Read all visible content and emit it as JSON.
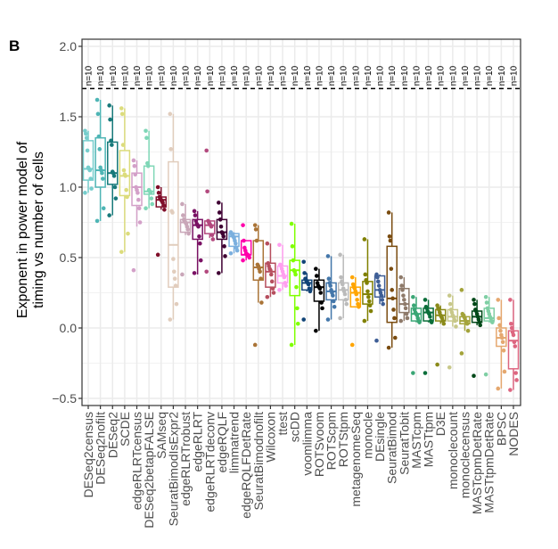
{
  "panel_label": "B",
  "chart_data": {
    "type": "boxplot",
    "title": "",
    "xlabel": "",
    "ylabel": "Exponent in power model of timing vs number of cells",
    "ylabel_lines": [
      "Exponent in power model of",
      "timing vs number of cells"
    ],
    "ylim": [
      -0.55,
      2.0
    ],
    "yticks": [
      -0.5,
      0.0,
      0.5,
      1.0,
      1.5,
      2.0
    ],
    "ytick_labels": [
      "−0.5",
      "0.0",
      "0.5",
      "1.0",
      "1.5",
      "2.0"
    ],
    "grid": true,
    "n_label_line": 1.7,
    "categories": [
      "DESeq2census",
      "DESeq2nofilt",
      "DESeq2",
      "SCDE",
      "edgeRLRTcensus",
      "DESeq2betapFALSE",
      "SAMseq",
      "SeuratBimodIsExpr2",
      "edgeRLRTrobust",
      "edgeRLRT",
      "edgeRLRTdeconv",
      "edgeRQLF",
      "limmatrend",
      "edgeRQLFDetRate",
      "SeuratBimodnofilt",
      "Wilcoxon",
      "ttest",
      "scDD",
      "voomlimma",
      "ROTSvoom",
      "ROTScpm",
      "ROTStpm",
      "metagenomeSeq",
      "monocle",
      "DEsingle",
      "SeuratBimod",
      "SeuratTobit",
      "MASTcpm",
      "MASTtpm",
      "D3E",
      "monoclecount",
      "monoclecensus",
      "MASTcpmDetRate",
      "MASTtpmDetRate",
      "BPSC",
      "NODES"
    ],
    "n_labels": [
      "n=10",
      "n=10",
      "n=10",
      "n=10",
      "n=10",
      "n=10",
      "n=10",
      "n=10",
      "n=10",
      "n=10",
      "n=10",
      "n=10",
      "n=10",
      "n=10",
      "n=10",
      "n=10",
      "n=10",
      "n=10",
      "n=10",
      "n=10",
      "n=10",
      "n=10",
      "n=10",
      "n=10",
      "n=10",
      "n=10",
      "n=10",
      "n=10",
      "n=10",
      "n=10",
      "n=10",
      "n=10",
      "n=10",
      "n=10",
      "n=10",
      "n=10"
    ],
    "colors": [
      "#76CDCC",
      "#4EB5B5",
      "#17797A",
      "#DCDC7C",
      "#D3A0C8",
      "#7FD7B7",
      "#800F2A",
      "#E1CDBD",
      "#C9A6B8",
      "#7A1264",
      "#B3497E",
      "#3F0033",
      "#7BAFDE",
      "#FF00AA",
      "#AA7437",
      "#B64E5E",
      "#FFA0F0",
      "#80FF00",
      "#114477",
      "#000000",
      "#4477AA",
      "#BBBBBB",
      "#FFA500",
      "#808000",
      "#3E5E96",
      "#7A4C10",
      "#8E7A6A",
      "#3AA675",
      "#0B6E3A",
      "#8A8A1A",
      "#C8C88A",
      "#A3A33A",
      "#004818",
      "#7FCFA4",
      "#E5A86F",
      "#DD6680"
    ],
    "series": [
      {
        "name": "DESeq2census",
        "whisker_low": 0.96,
        "q1": 1.05,
        "median": 1.13,
        "q3": 1.33,
        "whisker_high": 1.4,
        "points": [
          1.4,
          1.38,
          1.35,
          1.26,
          1.14,
          1.13,
          1.12,
          1.06,
          0.99,
          0.96
        ]
      },
      {
        "name": "DESeq2nofilt",
        "whisker_low": 0.76,
        "q1": 1.0,
        "median": 1.12,
        "q3": 1.35,
        "whisker_high": 1.62,
        "points": [
          1.62,
          1.52,
          1.36,
          1.27,
          1.14,
          1.12,
          1.1,
          1.06,
          0.85,
          0.76
        ]
      },
      {
        "name": "DESeq2",
        "whisker_low": 0.8,
        "q1": 1.02,
        "median": 1.1,
        "q3": 1.32,
        "whisker_high": 1.58,
        "points": [
          1.58,
          1.48,
          1.33,
          1.3,
          1.11,
          1.1,
          1.08,
          1.0,
          0.92,
          0.8
        ]
      },
      {
        "name": "SCDE",
        "whisker_low": 0.54,
        "q1": 0.94,
        "median": 1.08,
        "q3": 1.26,
        "whisker_high": 1.56,
        "points": [
          1.56,
          1.52,
          1.3,
          1.12,
          1.09,
          1.08,
          0.98,
          0.93,
          0.67,
          0.54
        ]
      },
      {
        "name": "edgeRLRTcensus",
        "whisker_low": 0.72,
        "q1": 0.87,
        "median": 1.0,
        "q3": 1.1,
        "whisker_high": 1.19,
        "points": [
          1.19,
          1.15,
          1.09,
          1.0,
          0.98,
          0.96,
          0.91,
          0.85,
          0.75,
          0.41
        ]
      },
      {
        "name": "DESeq2betapFALSE",
        "whisker_low": 0.85,
        "q1": 0.95,
        "median": 0.97,
        "q3": 1.15,
        "whisker_high": 1.4,
        "points": [
          1.4,
          1.35,
          1.17,
          1.15,
          0.98,
          0.97,
          0.96,
          0.92,
          0.88,
          0.85
        ]
      },
      {
        "name": "SAMseq",
        "whisker_low": 0.84,
        "q1": 0.86,
        "median": 0.91,
        "q3": 0.93,
        "whisker_high": 1.0,
        "points": [
          1.0,
          0.96,
          0.93,
          0.92,
          0.91,
          0.9,
          0.89,
          0.87,
          0.84,
          0.52
        ]
      },
      {
        "name": "SeuratBimodIsExpr2",
        "whisker_low": 0.06,
        "q1": 0.29,
        "median": 0.59,
        "q3": 1.18,
        "whisker_high": 1.52,
        "points": [
          1.52,
          1.27,
          0.83,
          0.82,
          0.49,
          0.4,
          0.35,
          0.3,
          0.17,
          0.06
        ]
      },
      {
        "name": "edgeRLRTrobust",
        "whisker_low": 0.66,
        "q1": 0.68,
        "median": 0.75,
        "q3": 0.77,
        "whisker_high": 0.88,
        "points": [
          0.88,
          0.8,
          0.77,
          0.76,
          0.75,
          0.74,
          0.72,
          0.7,
          0.67,
          0.38
        ]
      },
      {
        "name": "edgeRLRT",
        "whisker_low": 0.38,
        "q1": 0.63,
        "median": 0.73,
        "q3": 0.77,
        "whisker_high": 0.83,
        "points": [
          0.83,
          0.8,
          0.76,
          0.74,
          0.73,
          0.72,
          0.65,
          0.6,
          0.48,
          0.39
        ]
      },
      {
        "name": "edgeRLRTdeconv",
        "whisker_low": 0.64,
        "q1": 0.67,
        "median": 0.73,
        "q3": 0.76,
        "whisker_high": 0.76,
        "points": [
          1.26,
          0.97,
          0.76,
          0.75,
          0.74,
          0.73,
          0.72,
          0.66,
          0.63,
          0.4
        ]
      },
      {
        "name": "edgeRQLF",
        "whisker_low": 0.39,
        "q1": 0.63,
        "median": 0.68,
        "q3": 0.77,
        "whisker_high": 0.89,
        "points": [
          0.89,
          0.82,
          0.77,
          0.72,
          0.68,
          0.67,
          0.65,
          0.58,
          0.51,
          0.39
        ]
      },
      {
        "name": "limmatrend",
        "whisker_low": 0.53,
        "q1": 0.58,
        "median": 0.65,
        "q3": 0.67,
        "whisker_high": 0.68,
        "points": [
          0.68,
          0.67,
          0.66,
          0.65,
          0.64,
          0.62,
          0.6,
          0.57,
          0.55,
          0.53
        ]
      },
      {
        "name": "edgeRQLFDetRate",
        "whisker_low": 0.48,
        "q1": 0.52,
        "median": 0.52,
        "q3": 0.62,
        "whisker_high": 0.62,
        "points": [
          0.73,
          0.62,
          0.57,
          0.55,
          0.53,
          0.52,
          0.52,
          0.51,
          0.5,
          0.48
        ]
      },
      {
        "name": "SeuratBimodnofilt",
        "whisker_low": 0.18,
        "q1": 0.34,
        "median": 0.43,
        "q3": 0.62,
        "whisker_high": 0.73,
        "points": [
          0.73,
          0.7,
          0.62,
          0.45,
          0.44,
          0.42,
          0.4,
          0.35,
          0.18,
          -0.12
        ]
      },
      {
        "name": "Wilcoxon",
        "whisker_low": 0.22,
        "q1": 0.29,
        "median": 0.4,
        "q3": 0.46,
        "whisker_high": 0.6,
        "points": [
          0.6,
          0.46,
          0.44,
          0.42,
          0.41,
          0.38,
          0.33,
          0.28,
          0.25,
          0.22
        ]
      },
      {
        "name": "ttest",
        "whisker_low": 0.27,
        "q1": 0.32,
        "median": 0.37,
        "q3": 0.44,
        "whisker_high": 0.59,
        "points": [
          0.59,
          0.45,
          0.44,
          0.42,
          0.4,
          0.38,
          0.36,
          0.32,
          0.3,
          0.27
        ]
      },
      {
        "name": "scDD",
        "whisker_low": -0.12,
        "q1": 0.23,
        "median": 0.41,
        "q3": 0.48,
        "whisker_high": 0.74,
        "points": [
          0.74,
          0.58,
          0.48,
          0.41,
          0.4,
          0.38,
          0.29,
          0.14,
          0.03,
          -0.12
        ]
      },
      {
        "name": "voomlimma",
        "whisker_low": 0.26,
        "q1": 0.27,
        "median": 0.32,
        "q3": 0.34,
        "whisker_high": 0.39,
        "points": [
          0.47,
          0.39,
          0.35,
          0.34,
          0.33,
          0.32,
          0.31,
          0.28,
          0.26,
          0.06
        ]
      },
      {
        "name": "ROTSvoom",
        "whisker_low": -0.02,
        "q1": 0.19,
        "median": 0.29,
        "q3": 0.34,
        "whisker_high": 0.42,
        "points": [
          0.42,
          0.37,
          0.32,
          0.3,
          0.29,
          0.28,
          0.25,
          0.18,
          0.14,
          -0.02
        ]
      },
      {
        "name": "ROTScpm",
        "whisker_low": 0.06,
        "q1": 0.2,
        "median": 0.26,
        "q3": 0.32,
        "whisker_high": 0.51,
        "points": [
          0.51,
          0.35,
          0.32,
          0.3,
          0.27,
          0.25,
          0.23,
          0.19,
          0.15,
          0.06
        ]
      },
      {
        "name": "ROTStpm",
        "whisker_low": 0.07,
        "q1": 0.2,
        "median": 0.27,
        "q3": 0.32,
        "whisker_high": 0.52,
        "points": [
          0.52,
          0.36,
          0.33,
          0.31,
          0.28,
          0.26,
          0.24,
          0.2,
          0.17,
          0.07
        ]
      },
      {
        "name": "metagenomeSeq",
        "whisker_low": 0.15,
        "q1": 0.15,
        "median": 0.25,
        "q3": 0.29,
        "whisker_high": 0.36,
        "points": [
          0.36,
          0.31,
          0.29,
          0.28,
          0.26,
          0.24,
          0.2,
          0.17,
          0.15,
          -0.12
        ]
      },
      {
        "name": "monocle",
        "whisker_low": 0.05,
        "q1": 0.17,
        "median": 0.24,
        "q3": 0.33,
        "whisker_high": 0.63,
        "points": [
          0.63,
          0.38,
          0.34,
          0.32,
          0.26,
          0.22,
          0.19,
          0.16,
          0.12,
          0.05
        ]
      },
      {
        "name": "DEsingle",
        "whisker_low": 0.17,
        "q1": 0.22,
        "median": 0.27,
        "q3": 0.37,
        "whisker_high": 0.38,
        "points": [
          0.38,
          0.36,
          0.33,
          0.3,
          0.27,
          0.25,
          0.23,
          0.2,
          0.17,
          -0.09
        ]
      },
      {
        "name": "SeuratBimod",
        "whisker_low": -0.14,
        "q1": 0.04,
        "median": 0.21,
        "q3": 0.58,
        "whisker_high": 0.82,
        "points": [
          0.82,
          0.65,
          0.62,
          0.42,
          0.27,
          0.21,
          0.13,
          0.07,
          -0.07,
          -0.14
        ]
      },
      {
        "name": "SeuratTobit",
        "whisker_low": 0.05,
        "q1": 0.11,
        "median": 0.17,
        "q3": 0.28,
        "whisker_high": 0.36,
        "points": [
          0.36,
          0.3,
          0.27,
          0.23,
          0.2,
          0.17,
          0.14,
          0.1,
          0.07,
          0.05
        ]
      },
      {
        "name": "MASTcpm",
        "whisker_low": 0.04,
        "q1": 0.05,
        "median": 0.1,
        "q3": 0.14,
        "whisker_high": 0.22,
        "points": [
          0.22,
          0.16,
          0.13,
          0.11,
          0.1,
          0.09,
          0.07,
          0.05,
          0.04,
          -0.32
        ]
      },
      {
        "name": "MASTtpm",
        "whisker_low": 0.04,
        "q1": 0.05,
        "median": 0.11,
        "q3": 0.14,
        "whisker_high": 0.2,
        "points": [
          0.2,
          0.15,
          0.14,
          0.12,
          0.11,
          0.1,
          0.08,
          0.05,
          0.04,
          -0.32
        ]
      },
      {
        "name": "D3E",
        "whisker_low": 0.03,
        "q1": 0.05,
        "median": 0.09,
        "q3": 0.13,
        "whisker_high": 0.16,
        "points": [
          0.16,
          0.14,
          0.13,
          0.11,
          0.09,
          0.08,
          0.07,
          0.05,
          0.03,
          -0.26
        ]
      },
      {
        "name": "monoclecount",
        "whisker_low": 0.01,
        "q1": 0.05,
        "median": 0.08,
        "q3": 0.13,
        "whisker_high": 0.23,
        "points": [
          0.23,
          0.17,
          0.13,
          0.11,
          0.09,
          0.08,
          0.06,
          0.05,
          0.01,
          -0.28
        ]
      },
      {
        "name": "monoclecensus",
        "whisker_low": -0.02,
        "q1": 0.03,
        "median": 0.05,
        "q3": 0.08,
        "whisker_high": 0.1,
        "points": [
          0.27,
          0.1,
          0.09,
          0.08,
          0.07,
          0.05,
          0.04,
          0.03,
          -0.02,
          -0.18
        ]
      },
      {
        "name": "MASTcpmDetRate",
        "whisker_low": 0.02,
        "q1": 0.04,
        "median": 0.08,
        "q3": 0.12,
        "whisker_high": 0.2,
        "points": [
          0.2,
          0.17,
          0.13,
          0.12,
          0.1,
          0.08,
          0.06,
          0.04,
          0.02,
          -0.34
        ]
      },
      {
        "name": "MASTtpmDetRate",
        "whisker_low": 0.04,
        "q1": 0.05,
        "median": 0.07,
        "q3": 0.14,
        "whisker_high": 0.22,
        "points": [
          0.22,
          0.18,
          0.14,
          0.12,
          0.1,
          0.08,
          0.07,
          0.05,
          0.04,
          -0.33
        ]
      },
      {
        "name": "BPSC",
        "whisker_low": -0.43,
        "q1": -0.13,
        "median": -0.07,
        "q3": 0.0,
        "whisker_high": 0.2,
        "points": [
          0.2,
          0.07,
          0.02,
          -0.02,
          -0.05,
          -0.07,
          -0.1,
          -0.16,
          -0.31,
          -0.43
        ]
      },
      {
        "name": "NODES",
        "whisker_low": -0.44,
        "q1": -0.29,
        "median": -0.09,
        "q3": -0.02,
        "whisker_high": 0.2,
        "points": [
          0.2,
          0.03,
          0.0,
          -0.03,
          -0.05,
          -0.1,
          -0.13,
          -0.32,
          -0.37,
          -0.44
        ]
      }
    ]
  }
}
